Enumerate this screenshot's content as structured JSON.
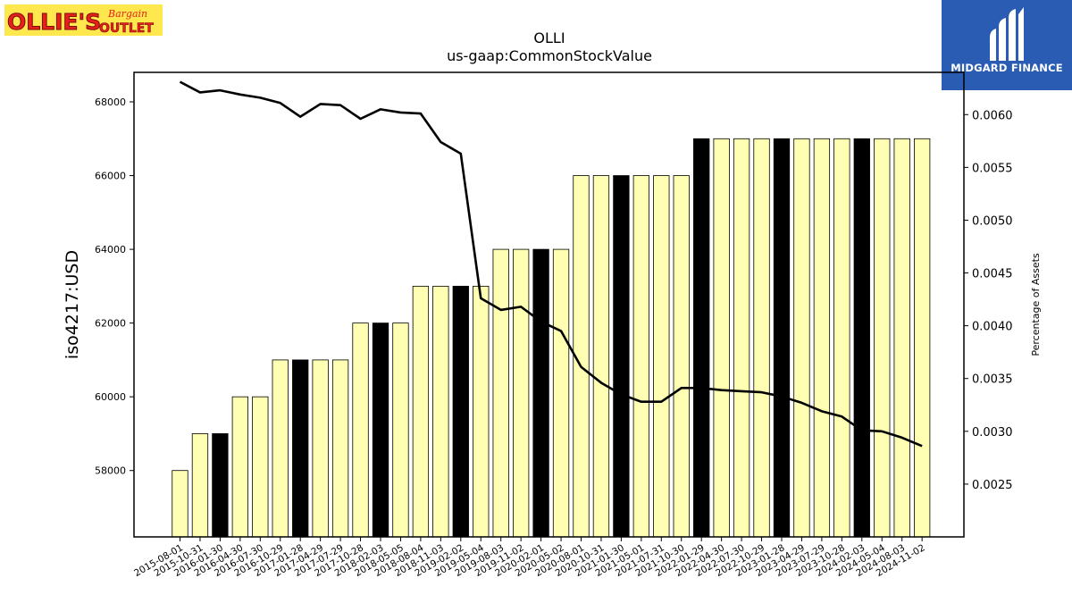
{
  "brand": {
    "left_logo_main": "OLLIE'S",
    "left_logo_top": "Bargain",
    "left_logo_bottom": "OUTLET",
    "right_logo": "MIDGARD FINANCE"
  },
  "colors": {
    "bar_fill": "#ffffb3",
    "bar_highlight": "#000000",
    "line": "#000000",
    "logo_yellow": "#ffe84d",
    "logo_red": "#e8201c",
    "logo_blue": "#2a5cb4"
  },
  "chart_data": {
    "type": "bar",
    "title": "OLLI",
    "subtitle": "us-gaap:CommonStockValue",
    "ylabel": "iso4217:USD",
    "y2label": "Percentage of Assets",
    "ylim": [
      56200,
      68800
    ],
    "y2lim": [
      0.002,
      0.0064
    ],
    "yticks": [
      "58000",
      "60000",
      "62000",
      "64000",
      "66000",
      "68000"
    ],
    "y2ticks": [
      "0.0025",
      "0.0030",
      "0.0035",
      "0.0040",
      "0.0045",
      "0.0050",
      "0.0055",
      "0.0060"
    ],
    "categories": [
      "2015-08-01",
      "2015-10-31",
      "2016-01-30",
      "2016-04-30",
      "2016-07-30",
      "2016-10-29",
      "2017-01-28",
      "2017-04-29",
      "2017-07-29",
      "2017-10-28",
      "2018-02-03",
      "2018-05-05",
      "2018-08-04",
      "2018-11-03",
      "2019-02-02",
      "2019-05-04",
      "2019-08-03",
      "2019-11-02",
      "2020-02-01",
      "2020-05-02",
      "2020-08-01",
      "2020-10-31",
      "2021-01-30",
      "2021-05-01",
      "2021-07-31",
      "2021-10-30",
      "2022-01-29",
      "2022-04-30",
      "2022-07-30",
      "2022-10-29",
      "2023-01-28",
      "2023-04-29",
      "2023-07-29",
      "2023-10-28",
      "2024-02-03",
      "2024-05-04",
      "2024-08-03",
      "2024-11-02"
    ],
    "series": [
      {
        "kind": "bar",
        "axis": "left",
        "values": [
          58000,
          59000,
          59000,
          60000,
          60000,
          61000,
          61000,
          61000,
          61000,
          62000,
          62000,
          62000,
          63000,
          63000,
          63000,
          63000,
          64000,
          64000,
          64000,
          64000,
          66000,
          66000,
          66000,
          66000,
          66000,
          66000,
          67000,
          67000,
          67000,
          67000,
          67000,
          67000,
          67000,
          67000,
          67000,
          67000,
          67000,
          67000
        ],
        "highlight": [
          false,
          false,
          true,
          false,
          false,
          false,
          true,
          false,
          false,
          false,
          true,
          false,
          false,
          false,
          true,
          false,
          false,
          false,
          true,
          false,
          false,
          false,
          true,
          false,
          false,
          false,
          true,
          false,
          false,
          false,
          true,
          false,
          false,
          false,
          true,
          false,
          false,
          false
        ]
      },
      {
        "kind": "line",
        "axis": "right",
        "values": [
          0.00631,
          0.00621,
          0.00623,
          0.00619,
          0.00616,
          0.00611,
          0.00598,
          0.0061,
          0.00609,
          0.00596,
          0.00605,
          0.00602,
          0.00601,
          0.00574,
          0.00563,
          0.00426,
          0.00415,
          0.00418,
          0.00404,
          0.00395,
          0.00361,
          0.00346,
          0.00335,
          0.00328,
          0.00328,
          0.00341,
          0.00341,
          0.00339,
          0.00338,
          0.00337,
          0.00333,
          0.00327,
          0.00319,
          0.00314,
          0.00301,
          0.003,
          0.00294,
          0.00286
        ]
      }
    ]
  }
}
